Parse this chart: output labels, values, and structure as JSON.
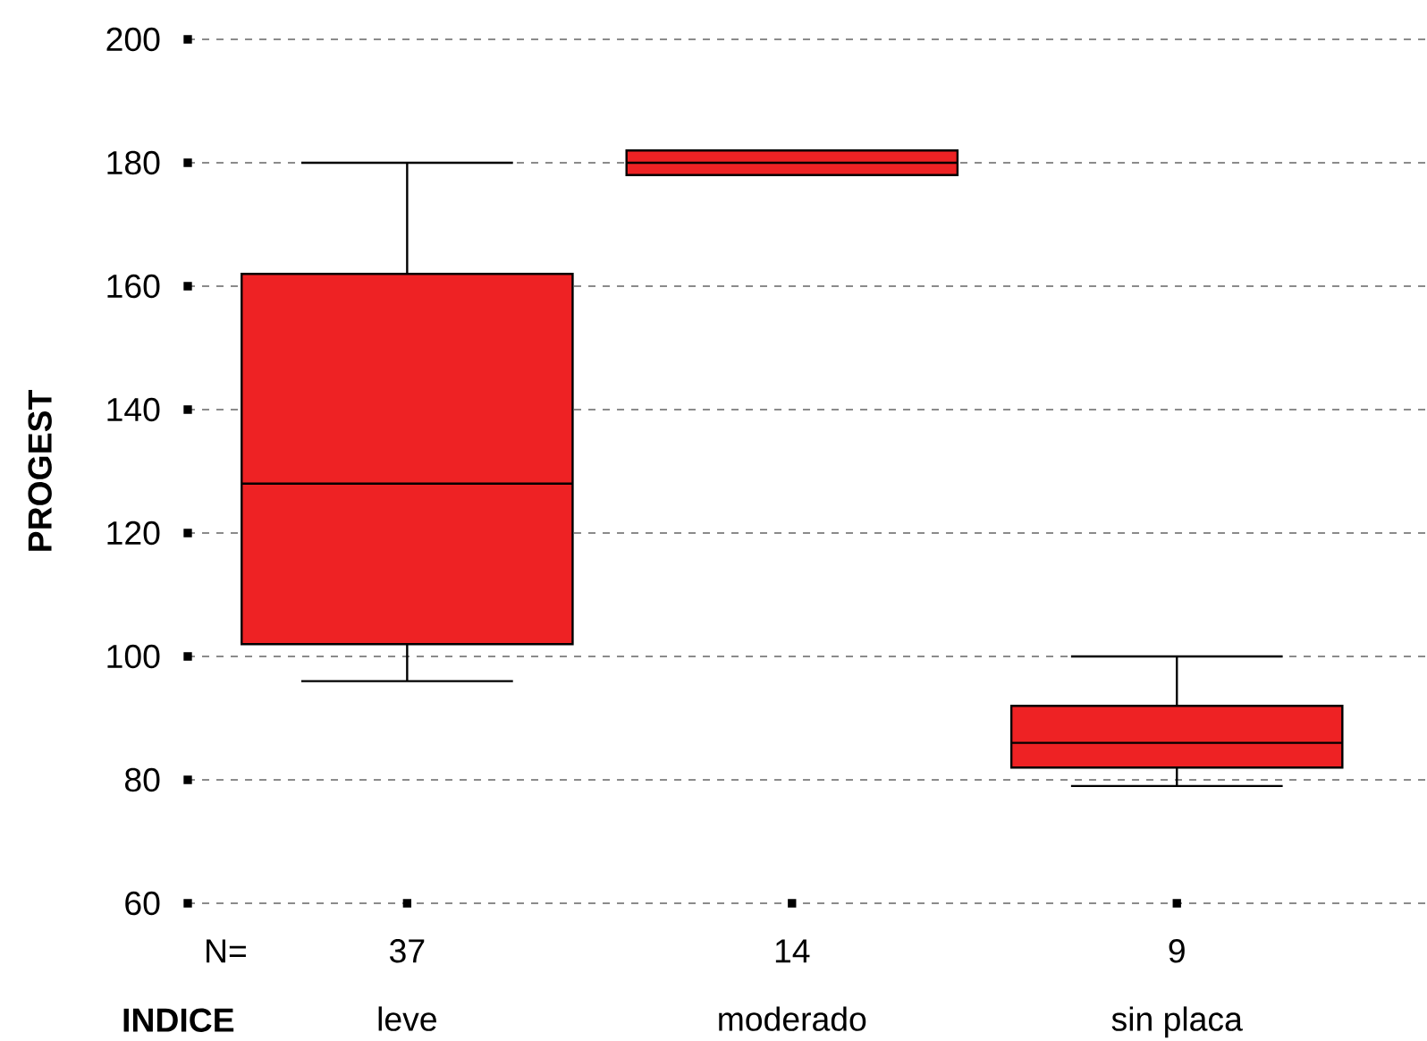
{
  "chart_data": {
    "type": "box",
    "xlabel": "INDICE",
    "ylabel": "PROGEST",
    "categories": [
      "leve",
      "moderado",
      "sin placa"
    ],
    "color": "#ee2224",
    "boxes": [
      {
        "low": 96,
        "q1": 102,
        "median": 128,
        "q3": 162,
        "high": 180
      },
      {
        "low": 178,
        "q1": 178,
        "median": 180,
        "q3": 182,
        "high": 182
      },
      {
        "low": 79,
        "q1": 82,
        "median": 86,
        "q3": 92,
        "high": 100
      }
    ],
    "annotations": [
      "N=",
      "37",
      "14",
      "9"
    ],
    "ylim": [
      60,
      200
    ],
    "yticks": [
      60,
      80,
      100,
      120,
      140,
      160,
      180,
      200
    ],
    "grid": "y"
  }
}
